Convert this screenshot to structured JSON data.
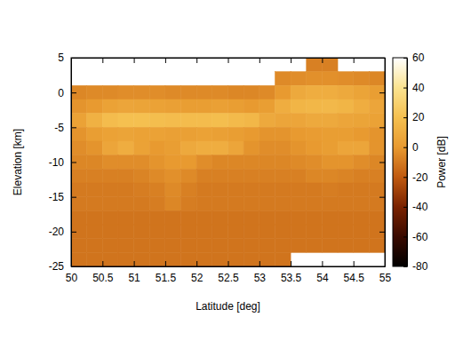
{
  "chart_data": {
    "type": "heatmap",
    "xlabel": "Latitude [deg]",
    "ylabel": "Elevation [km]",
    "xlim": [
      50,
      55
    ],
    "ylim": [
      -25,
      5
    ],
    "xticks": [
      50,
      50.5,
      51,
      51.5,
      52,
      52.5,
      53,
      53.5,
      54,
      54.5,
      55
    ],
    "yticks": [
      -25,
      -20,
      -15,
      -10,
      -5,
      0,
      5
    ],
    "x_bins": [
      50,
      50.25,
      50.5,
      50.75,
      51,
      51.25,
      51.5,
      51.75,
      52,
      52.25,
      52.5,
      52.75,
      53,
      53.25,
      53.5,
      53.75,
      54,
      54.25,
      54.5,
      54.75,
      55
    ],
    "y_bins": [
      5,
      3,
      1,
      -1,
      -3,
      -5,
      -7,
      -9,
      -11,
      -13,
      -15,
      -17,
      -19,
      -21,
      -23,
      -25
    ],
    "values": [
      [
        null,
        null,
        null,
        null,
        null,
        null,
        null,
        null,
        null,
        null,
        null,
        null,
        null,
        null,
        null,
        -8,
        -8,
        null,
        null,
        null
      ],
      [
        null,
        null,
        null,
        null,
        null,
        null,
        null,
        null,
        null,
        null,
        null,
        null,
        null,
        -5,
        -4,
        -3,
        -3,
        -4,
        -5,
        -6
      ],
      [
        -6,
        -5,
        -5,
        -4,
        -4,
        -4,
        -5,
        -5,
        -5,
        -5,
        -6,
        -6,
        -5,
        0,
        8,
        10,
        10,
        8,
        5,
        2
      ],
      [
        -2,
        0,
        4,
        6,
        5,
        4,
        3,
        2,
        2,
        3,
        2,
        0,
        2,
        10,
        14,
        15,
        16,
        14,
        10,
        6
      ],
      [
        4,
        12,
        18,
        20,
        20,
        19,
        18,
        18,
        18,
        19,
        17,
        15,
        8,
        6,
        6,
        8,
        8,
        6,
        5,
        4
      ],
      [
        -2,
        2,
        4,
        5,
        4,
        4,
        3,
        3,
        4,
        3,
        2,
        0,
        -2,
        -2,
        0,
        1,
        2,
        2,
        0,
        -2
      ],
      [
        -4,
        -2,
        6,
        10,
        4,
        0,
        2,
        8,
        10,
        10,
        6,
        -2,
        -4,
        -4,
        -2,
        0,
        2,
        6,
        6,
        -2
      ],
      [
        -6,
        -6,
        -4,
        -4,
        -4,
        -2,
        0,
        0,
        -4,
        -6,
        -6,
        -6,
        -6,
        -6,
        -5,
        -4,
        -2,
        -2,
        -4,
        -6
      ],
      [
        -8,
        -8,
        -8,
        -8,
        -7,
        -5,
        -3,
        -5,
        -8,
        -8,
        -8,
        -8,
        -8,
        -8,
        -8,
        -6,
        -6,
        -7,
        -8,
        -8
      ],
      [
        -10,
        -10,
        -10,
        -10,
        -9,
        -8,
        -5,
        -8,
        -10,
        -10,
        -10,
        -10,
        -10,
        -10,
        -10,
        -10,
        -9,
        -10,
        -10,
        -10
      ],
      [
        -10,
        -10,
        -10,
        -10,
        -10,
        -9,
        -6,
        -9,
        -10,
        -10,
        -10,
        -10,
        -10,
        -10,
        -10,
        -10,
        -10,
        -10,
        -10,
        -10
      ],
      [
        -12,
        -12,
        -12,
        -12,
        -12,
        -12,
        -12,
        -12,
        -12,
        -12,
        -12,
        -12,
        -12,
        -12,
        -12,
        -12,
        -12,
        -12,
        -12,
        -12
      ],
      [
        -12,
        -12,
        -12,
        -12,
        -12,
        -12,
        -12,
        -12,
        -12,
        -12,
        -12,
        -12,
        -12,
        -12,
        -12,
        -12,
        -12,
        -12,
        -12,
        -12
      ],
      [
        -12,
        -12,
        -12,
        -12,
        -12,
        -12,
        -12,
        -12,
        -12,
        -12,
        -12,
        -12,
        -12,
        -12,
        -12,
        -12,
        -12,
        -12,
        -12,
        -12
      ],
      [
        -12,
        -12,
        -12,
        -12,
        -12,
        -12,
        -12,
        -12,
        -12,
        -12,
        -12,
        -12,
        -12,
        -12,
        null,
        null,
        null,
        null,
        null,
        null
      ]
    ],
    "colorbar": {
      "label": "Power [dB]",
      "range": [
        -80,
        60
      ],
      "ticks": [
        -80,
        -60,
        -40,
        -20,
        0,
        20,
        40,
        60
      ]
    }
  }
}
